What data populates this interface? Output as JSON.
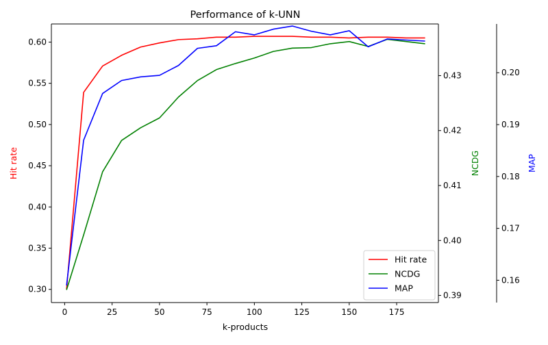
{
  "chart_data": {
    "type": "line",
    "title": "Performance of k-UNN",
    "xlabel": "k-products",
    "x": [
      1,
      10,
      20,
      30,
      40,
      50,
      60,
      70,
      80,
      90,
      100,
      110,
      120,
      130,
      140,
      150,
      160,
      170,
      180,
      190
    ],
    "xlim": [
      -7,
      197
    ],
    "xticks": [
      0,
      25,
      50,
      75,
      100,
      125,
      150,
      175
    ],
    "axes": [
      {
        "id": "hit",
        "label": "Hit rate",
        "color": "#ff0000",
        "side": "left",
        "ylim": [
          0.284,
          0.622
        ],
        "ticks": [
          0.3,
          0.35,
          0.4,
          0.45,
          0.5,
          0.55,
          0.6
        ],
        "tick_labels": [
          "0.30",
          "0.35",
          "0.40",
          "0.45",
          "0.50",
          "0.55",
          "0.60"
        ]
      },
      {
        "id": "ncdg",
        "label": "NCDG",
        "color": "#008000",
        "side": "right",
        "ylim": [
          0.3887,
          0.4394
        ],
        "ticks": [
          0.39,
          0.4,
          0.41,
          0.42,
          0.43
        ],
        "tick_labels": [
          "0.39",
          "0.40",
          "0.41",
          "0.42",
          "0.43"
        ]
      },
      {
        "id": "map",
        "label": "MAP",
        "color": "#0000ff",
        "side": "right-outer",
        "ylim": [
          0.1557,
          0.2094
        ],
        "ticks": [
          0.16,
          0.17,
          0.18,
          0.19,
          0.2
        ],
        "tick_labels": [
          "0.16",
          "0.17",
          "0.18",
          "0.19",
          "0.20"
        ]
      }
    ],
    "series": [
      {
        "name": "Hit rate",
        "axis": "hit",
        "color": "#ff0000",
        "values": [
          0.3,
          0.539,
          0.571,
          0.584,
          0.594,
          0.599,
          0.603,
          0.604,
          0.606,
          0.606,
          0.607,
          0.607,
          0.607,
          0.606,
          0.606,
          0.605,
          0.606,
          0.606,
          0.605,
          0.605
        ]
      },
      {
        "name": "NCDG",
        "axis": "ncdg",
        "color": "#008000",
        "values": [
          0.391,
          0.401,
          0.4125,
          0.4182,
          0.4205,
          0.4223,
          0.4261,
          0.4291,
          0.4311,
          0.4322,
          0.4332,
          0.4344,
          0.435,
          0.4351,
          0.4358,
          0.4362,
          0.4353,
          0.4366,
          0.4362,
          0.4358
        ]
      },
      {
        "name": "MAP",
        "axis": "map",
        "color": "#0000ff",
        "values": [
          0.159,
          0.187,
          0.196,
          0.1985,
          0.1992,
          0.1995,
          0.2014,
          0.2047,
          0.2052,
          0.2079,
          0.2073,
          0.2084,
          0.209,
          0.208,
          0.2073,
          0.2081,
          0.205,
          0.2065,
          0.2063,
          0.2061
        ]
      }
    ],
    "legend": {
      "position": "lower-right",
      "entries": [
        "Hit rate",
        "NCDG",
        "MAP"
      ]
    },
    "grid": false
  }
}
